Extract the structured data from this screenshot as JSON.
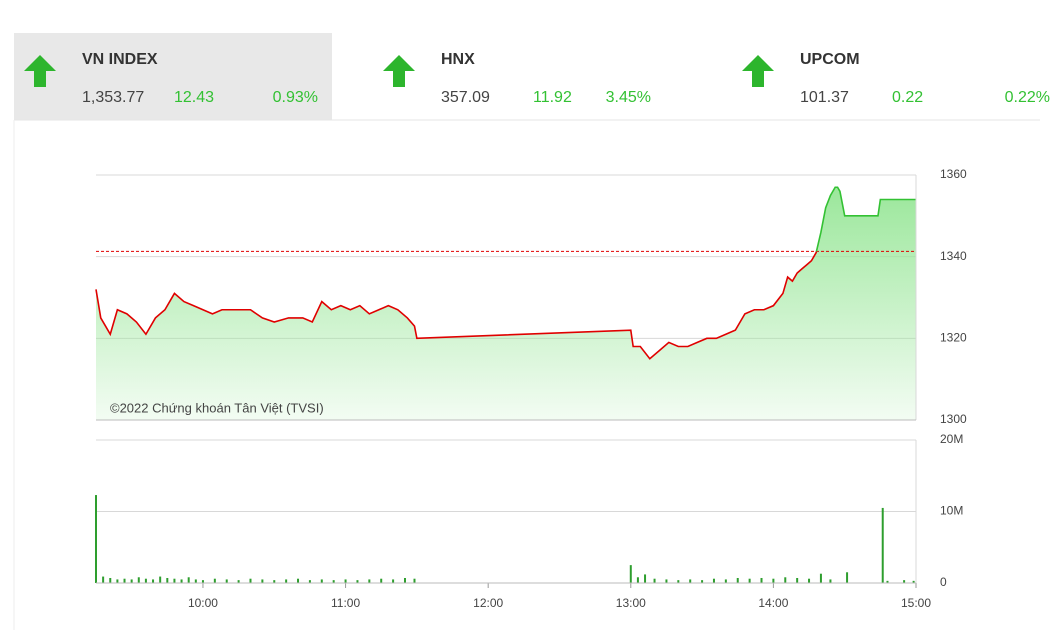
{
  "indices": [
    {
      "name": "VN INDEX",
      "value": "1,353.77",
      "change": "12.43",
      "change_pct": "0.93%"
    },
    {
      "name": "HNX",
      "value": "357.09",
      "change": "11.92",
      "change_pct": "3.45%"
    },
    {
      "name": "UPCOM",
      "value": "101.37",
      "change": "0.22",
      "change_pct": "0.22%"
    }
  ],
  "chart_data": [
    {
      "type": "area",
      "annotation": "©2022 Chứng khoán Tân Việt (TVSI)",
      "x": [
        555,
        557,
        559,
        561,
        564,
        568,
        572,
        576,
        580,
        584,
        588,
        592,
        596,
        600,
        604,
        608,
        615,
        620,
        625,
        630,
        636,
        642,
        646,
        650,
        654,
        658,
        662,
        666,
        670,
        674,
        678,
        682,
        686,
        689,
        690,
        780,
        781,
        784,
        788,
        792,
        796,
        800,
        804,
        808,
        812,
        816,
        820,
        824,
        828,
        832,
        836,
        840,
        844,
        846,
        848,
        850,
        852,
        854,
        856,
        858,
        860,
        862,
        864,
        866,
        867,
        868,
        870,
        884,
        885,
        900
      ],
      "values": [
        1332,
        1325,
        1323,
        1321,
        1327,
        1326,
        1324,
        1321,
        1325,
        1327,
        1331,
        1329,
        1328,
        1327,
        1326,
        1327,
        1327,
        1327,
        1325,
        1324,
        1325,
        1325,
        1324,
        1329,
        1327,
        1328,
        1327,
        1328,
        1326,
        1327,
        1328,
        1327,
        1325,
        1323,
        1320,
        1322,
        1318,
        1318,
        1315,
        1317,
        1319,
        1318,
        1318,
        1319,
        1320,
        1320,
        1321,
        1322,
        1326,
        1327,
        1327,
        1328,
        1331,
        1335,
        1334,
        1336,
        1337,
        1338,
        1339,
        1341,
        1346,
        1352,
        1355,
        1357,
        1357,
        1356,
        1350,
        1350,
        1354,
        1354
      ],
      "color": "#e00000",
      "up_color": "#33c133",
      "fill_color": "#9be79b",
      "reference": 1341.3,
      "xlim": [
        555,
        900
      ],
      "ylim": [
        1300,
        1360
      ],
      "yticks": [
        1300,
        1320,
        1340,
        1360
      ],
      "grid": true
    },
    {
      "type": "bar",
      "x": [
        555,
        558,
        561,
        564,
        567,
        570,
        573,
        576,
        579,
        582,
        585,
        588,
        591,
        594,
        597,
        600,
        605,
        610,
        615,
        620,
        625,
        630,
        635,
        640,
        645,
        650,
        655,
        660,
        665,
        670,
        675,
        680,
        685,
        689,
        780,
        783,
        786,
        790,
        795,
        800,
        805,
        810,
        815,
        820,
        825,
        830,
        835,
        840,
        845,
        850,
        855,
        860,
        864,
        871,
        886,
        888,
        895,
        899
      ],
      "values": [
        12.3,
        0.9,
        0.7,
        0.5,
        0.6,
        0.5,
        0.8,
        0.6,
        0.5,
        0.9,
        0.7,
        0.6,
        0.5,
        0.8,
        0.5,
        0.4,
        0.6,
        0.5,
        0.4,
        0.6,
        0.5,
        0.4,
        0.5,
        0.6,
        0.4,
        0.5,
        0.4,
        0.5,
        0.4,
        0.5,
        0.6,
        0.5,
        0.7,
        0.6,
        2.5,
        0.8,
        1.2,
        0.6,
        0.5,
        0.4,
        0.5,
        0.4,
        0.6,
        0.5,
        0.7,
        0.6,
        0.7,
        0.6,
        0.8,
        0.7,
        0.6,
        1.3,
        0.5,
        1.5,
        10.5,
        0.3,
        0.4,
        0.3
      ],
      "color": "#2e9e2e",
      "xlim": [
        555,
        900
      ],
      "xticks": [
        {
          "value": 600,
          "label": "10:00"
        },
        {
          "value": 660,
          "label": "11:00"
        },
        {
          "value": 720,
          "label": "12:00"
        },
        {
          "value": 780,
          "label": "13:00"
        },
        {
          "value": 840,
          "label": "14:00"
        },
        {
          "value": 900,
          "label": "15:00"
        }
      ],
      "ylim": [
        0,
        20
      ],
      "yticks": [
        0,
        {
          "value": 10,
          "label": "10M"
        },
        {
          "value": 20,
          "label": "20M"
        }
      ],
      "grid": true
    }
  ]
}
